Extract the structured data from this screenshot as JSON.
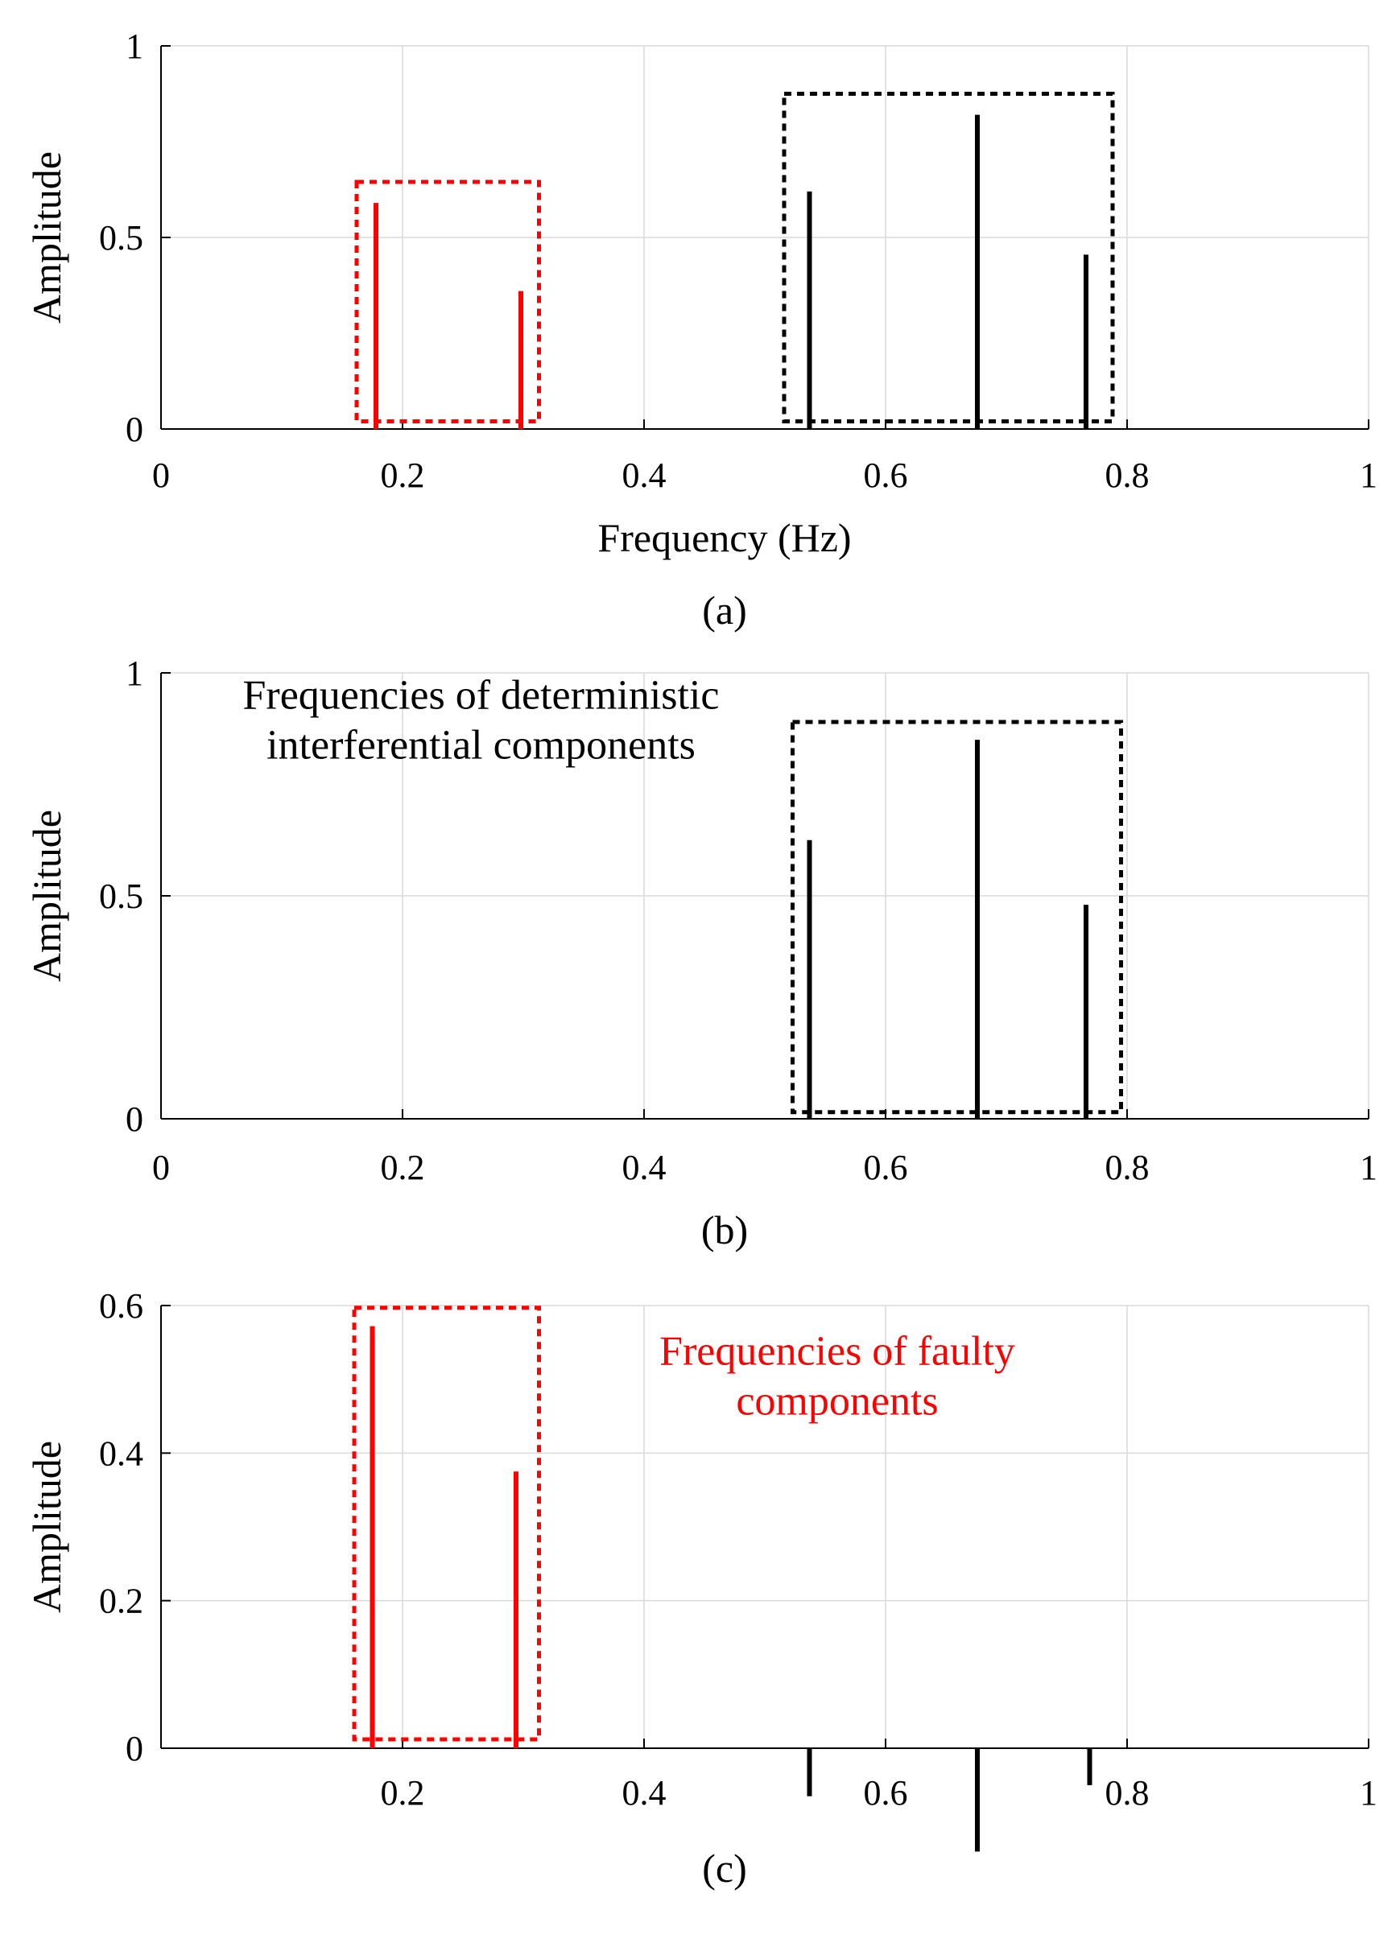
{
  "colors": {
    "faulty": "#ff0000",
    "deterministic": "#000000",
    "grid": "#d9d9d9",
    "axis": "#000000"
  },
  "chart_data": [
    {
      "id": "a",
      "type": "stem",
      "caption": "(a)",
      "xlabel": "Frequency (Hz)",
      "ylabel": "Amplitude",
      "xlim": [
        0,
        1
      ],
      "ylim": [
        0,
        1
      ],
      "xticks": [
        0,
        0.2,
        0.4,
        0.6,
        0.8,
        1
      ],
      "xtick_labels": [
        "0",
        "0.2",
        "0.4",
        "0.6",
        "0.8",
        "1"
      ],
      "yticks": [
        0,
        0.5,
        1
      ],
      "ytick_labels": [
        "0",
        "0.5",
        "1"
      ],
      "grid": true,
      "series": [
        {
          "name": "faulty",
          "color": "#ff0000",
          "x": [
            0.178,
            0.298
          ],
          "y": [
            0.59,
            0.36
          ]
        },
        {
          "name": "deterministic",
          "color": "#000000",
          "x": [
            0.537,
            0.676,
            0.766
          ],
          "y": [
            0.62,
            0.82,
            0.455
          ]
        }
      ],
      "boxes": [
        {
          "name": "faulty-box",
          "color": "#ff0000",
          "x0": 0.162,
          "x1": 0.313,
          "y0": 0.02,
          "y1": 0.645
        },
        {
          "name": "deterministic-box",
          "color": "#000000",
          "x0": 0.516,
          "x1": 0.788,
          "y0": 0.02,
          "y1": 0.875
        }
      ],
      "annotations": []
    },
    {
      "id": "b",
      "type": "stem",
      "caption": "(b)",
      "xlabel": "",
      "ylabel": "Amplitude",
      "xlim": [
        0,
        1
      ],
      "ylim": [
        0,
        1
      ],
      "xticks": [
        0,
        0.2,
        0.4,
        0.6,
        0.8,
        1
      ],
      "xtick_labels": [
        "0",
        "0.2",
        "0.4",
        "0.6",
        "0.8",
        "1"
      ],
      "yticks": [
        0,
        0.5,
        1
      ],
      "ytick_labels": [
        "0",
        "0.5",
        "1"
      ],
      "grid": true,
      "series": [
        {
          "name": "deterministic",
          "color": "#000000",
          "x": [
            0.537,
            0.676,
            0.766
          ],
          "y": [
            0.625,
            0.85,
            0.48
          ]
        }
      ],
      "boxes": [
        {
          "name": "deterministic-box",
          "color": "#000000",
          "x0": 0.523,
          "x1": 0.795,
          "y0": 0.015,
          "y1": 0.89
        }
      ],
      "annotations": [
        {
          "name": "deterministic-annotation",
          "color": "#000000",
          "lines": [
            "Frequencies of deterministic",
            "interferential components"
          ],
          "x": 0.265,
          "y": 0.92
        }
      ]
    },
    {
      "id": "c",
      "type": "stem",
      "caption": "(c)",
      "xlabel": "",
      "ylabel": "Amplitude",
      "xlim": [
        0,
        1
      ],
      "ylim": [
        0,
        0.6
      ],
      "xticks": [
        0.2,
        0.4,
        0.6,
        0.8,
        1
      ],
      "xtick_labels": [
        "0.2",
        "0.4",
        "0.6",
        "0.8",
        "1"
      ],
      "yticks": [
        0,
        0.2,
        0.4,
        0.6
      ],
      "ytick_labels": [
        "0",
        "0.2",
        "0.4",
        "0.6"
      ],
      "grid": true,
      "series": [
        {
          "name": "faulty",
          "color": "#ff0000",
          "x": [
            0.175,
            0.294
          ],
          "y": [
            0.572,
            0.375
          ]
        },
        {
          "name": "deterministic",
          "color": "#000000",
          "x": [
            0.537,
            0.676,
            0.769
          ],
          "y": [
            -0.065,
            -0.14,
            -0.05
          ]
        }
      ],
      "boxes": [
        {
          "name": "faulty-box",
          "color": "#ff0000",
          "x0": 0.16,
          "x1": 0.313,
          "y0": 0.012,
          "y1": 0.597
        }
      ],
      "annotations": [
        {
          "name": "faulty-annotation",
          "color": "#ff0000",
          "lines": [
            "Frequencies of faulty",
            "components"
          ],
          "x": 0.56,
          "y": 0.52
        }
      ]
    }
  ]
}
